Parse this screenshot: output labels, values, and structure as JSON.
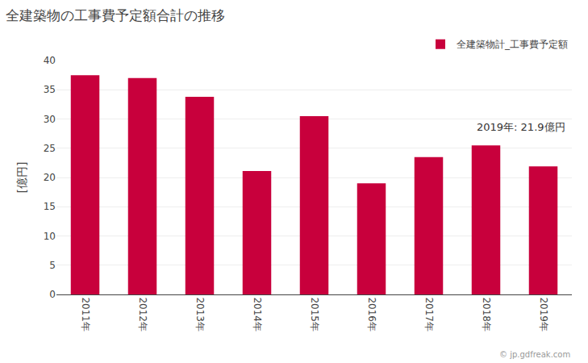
{
  "chart_data": {
    "type": "bar",
    "title": "全建築物の工事費予定額合計の推移",
    "ylabel": "[億円]",
    "annotations": [
      "2019年: 21.9億円",
      "© jp.gdfreak.com"
    ],
    "categories": [
      "2011年",
      "2012年",
      "2013年",
      "2014年",
      "2015年",
      "2016年",
      "2017年",
      "2018年",
      "2019年"
    ],
    "series": [
      {
        "name": "全建築物計_工事費予定額",
        "color": "#c8003c",
        "values": [
          37.5,
          37.0,
          33.8,
          21.1,
          30.5,
          19.0,
          23.5,
          25.5,
          21.9
        ]
      }
    ],
    "ylim": [
      0,
      40
    ],
    "yticks": [
      0,
      5,
      10,
      15,
      20,
      25,
      30,
      35,
      40
    ],
    "grid": true,
    "legend": "upper right"
  }
}
